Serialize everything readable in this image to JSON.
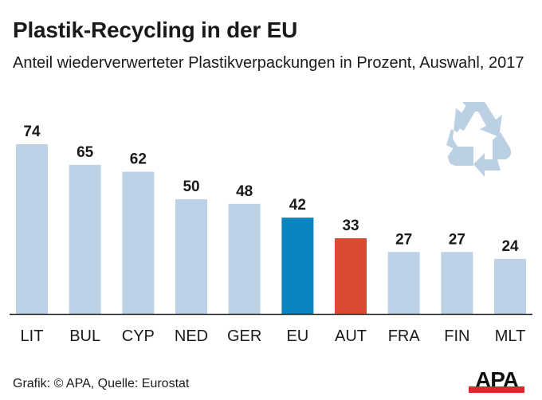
{
  "chart_data": {
    "type": "bar",
    "title": "Plastik-Recycling in der EU",
    "subtitle": "Anteil wiederverwerteter Plastikverpackungen in Prozent, Auswahl, 2017",
    "categories": [
      "LIT",
      "BUL",
      "CYP",
      "NED",
      "GER",
      "EU",
      "AUT",
      "FRA",
      "FIN",
      "MLT"
    ],
    "values": [
      74,
      65,
      62,
      50,
      48,
      42,
      33,
      27,
      27,
      24
    ],
    "ylim": [
      0,
      80
    ],
    "grid": false,
    "colors": {
      "default": "#bcd1e6",
      "EU": "#0a84c0",
      "AUT": "#dd4a33"
    },
    "source": "Grafik: © APA, Quelle: Eurostat"
  },
  "decor": {
    "icon": "recycling-icon",
    "logo_text": "APA"
  }
}
